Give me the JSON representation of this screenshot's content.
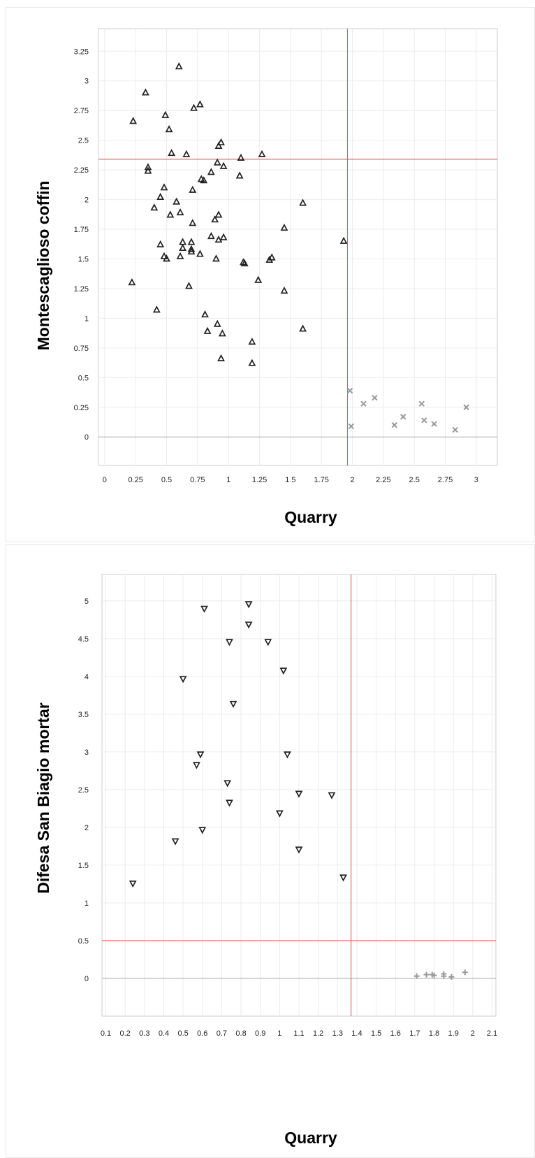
{
  "chart_data": [
    {
      "type": "scatter",
      "xlabel": "Quarry",
      "ylabel": "Montescaglioso coffin",
      "xlim": [
        -0.05,
        3.17
      ],
      "ylim": [
        -0.24,
        3.44
      ],
      "xticks": [
        "0",
        "0.25",
        "0.5",
        "0.75",
        "1",
        "1.25",
        "1.5",
        "1.75",
        "2",
        "2.25",
        "2.5",
        "2.75",
        "3"
      ],
      "yticks": [
        "0",
        "0.25",
        "0.5",
        "0.75",
        "1",
        "1.25",
        "1.5",
        "1.75",
        "2",
        "2.25",
        "2.5",
        "2.75",
        "3",
        "3.25"
      ],
      "grid": true,
      "threshold_x": 1.96,
      "threshold_y": 2.34,
      "threshold_color": "#ee4444",
      "series": [
        {
          "marker": "triangle-up",
          "color": "#222222",
          "points": [
            [
              0.6,
              3.12
            ],
            [
              0.33,
              2.9
            ],
            [
              0.77,
              2.8
            ],
            [
              0.72,
              2.77
            ],
            [
              0.49,
              2.71
            ],
            [
              0.23,
              2.66
            ],
            [
              0.52,
              2.59
            ],
            [
              0.94,
              2.48
            ],
            [
              0.92,
              2.45
            ],
            [
              0.54,
              2.39
            ],
            [
              0.66,
              2.38
            ],
            [
              1.27,
              2.38
            ],
            [
              1.1,
              2.35
            ],
            [
              0.91,
              2.31
            ],
            [
              0.96,
              2.28
            ],
            [
              0.35,
              2.27
            ],
            [
              0.35,
              2.24
            ],
            [
              0.86,
              2.23
            ],
            [
              1.09,
              2.2
            ],
            [
              0.78,
              2.17
            ],
            [
              0.8,
              2.16
            ],
            [
              0.48,
              2.1
            ],
            [
              0.71,
              2.08
            ],
            [
              0.45,
              2.02
            ],
            [
              0.58,
              1.98
            ],
            [
              1.6,
              1.97
            ],
            [
              0.4,
              1.93
            ],
            [
              0.61,
              1.89
            ],
            [
              0.92,
              1.87
            ],
            [
              0.53,
              1.87
            ],
            [
              0.89,
              1.83
            ],
            [
              0.71,
              1.8
            ],
            [
              1.45,
              1.76
            ],
            [
              0.86,
              1.69
            ],
            [
              0.96,
              1.68
            ],
            [
              0.92,
              1.66
            ],
            [
              1.93,
              1.65
            ],
            [
              0.63,
              1.64
            ],
            [
              0.7,
              1.64
            ],
            [
              0.45,
              1.62
            ],
            [
              0.63,
              1.59
            ],
            [
              0.7,
              1.58
            ],
            [
              0.7,
              1.56
            ],
            [
              0.77,
              1.54
            ],
            [
              0.61,
              1.52
            ],
            [
              0.48,
              1.52
            ],
            [
              0.5,
              1.5
            ],
            [
              1.35,
              1.51
            ],
            [
              1.33,
              1.49
            ],
            [
              0.9,
              1.5
            ],
            [
              1.12,
              1.47
            ],
            [
              1.13,
              1.46
            ],
            [
              0.22,
              1.3
            ],
            [
              1.24,
              1.32
            ],
            [
              0.68,
              1.27
            ],
            [
              1.45,
              1.23
            ],
            [
              0.42,
              1.07
            ],
            [
              0.81,
              1.03
            ],
            [
              0.91,
              0.95
            ],
            [
              1.6,
              0.91
            ],
            [
              0.83,
              0.89
            ],
            [
              0.95,
              0.87
            ],
            [
              1.19,
              0.8
            ],
            [
              0.94,
              0.66
            ],
            [
              1.19,
              0.62
            ]
          ]
        },
        {
          "marker": "x",
          "color": "#999999",
          "points": [
            [
              1.98,
              0.39
            ],
            [
              2.18,
              0.33
            ],
            [
              2.09,
              0.28
            ],
            [
              2.56,
              0.28
            ],
            [
              2.92,
              0.25
            ],
            [
              2.41,
              0.17
            ],
            [
              2.58,
              0.14
            ],
            [
              2.66,
              0.11
            ],
            [
              2.34,
              0.1
            ],
            [
              1.99,
              0.09
            ],
            [
              2.83,
              0.06
            ]
          ]
        }
      ]
    },
    {
      "type": "scatter",
      "xlabel": "Quarry",
      "ylabel": "Difesa San Biagio mortar",
      "xlim": [
        0.08,
        2.12
      ],
      "ylim": [
        -0.5,
        5.35
      ],
      "xticks": [
        "0.1",
        "0.2",
        "0.3",
        "0.4",
        "0.5",
        "0.6",
        "0.7",
        "0.8",
        "0.9",
        "1",
        "1.1",
        "1.2",
        "1.3",
        "1.4",
        "1.5",
        "1.6",
        "1.7",
        "1.8",
        "1.9",
        "2",
        "2.1"
      ],
      "yticks": [
        "0",
        "0.5",
        "1",
        "1.5",
        "2",
        "2.5",
        "3",
        "3.5",
        "4",
        "4.5",
        "5"
      ],
      "grid": true,
      "threshold_x": 1.37,
      "threshold_y": 0.5,
      "threshold_color": "#ee4444",
      "series": [
        {
          "marker": "triangle-down",
          "color": "#222222",
          "points": [
            [
              0.84,
              4.96
            ],
            [
              0.61,
              4.9
            ],
            [
              0.84,
              4.69
            ],
            [
              0.74,
              4.46
            ],
            [
              0.94,
              4.46
            ],
            [
              1.02,
              4.08
            ],
            [
              0.5,
              3.97
            ],
            [
              0.76,
              3.64
            ],
            [
              0.59,
              2.97
            ],
            [
              1.04,
              2.97
            ],
            [
              0.57,
              2.83
            ],
            [
              0.73,
              2.59
            ],
            [
              1.1,
              2.45
            ],
            [
              1.27,
              2.43
            ],
            [
              0.74,
              2.33
            ],
            [
              1.0,
              2.19
            ],
            [
              0.6,
              1.97
            ],
            [
              0.46,
              1.82
            ],
            [
              1.1,
              1.71
            ],
            [
              1.33,
              1.34
            ],
            [
              0.24,
              1.26
            ]
          ]
        },
        {
          "marker": "plus",
          "color": "#999999",
          "points": [
            [
              1.71,
              0.03
            ],
            [
              1.76,
              0.05
            ],
            [
              1.79,
              0.05
            ],
            [
              1.8,
              0.04
            ],
            [
              1.85,
              0.06
            ],
            [
              1.85,
              0.03
            ],
            [
              1.89,
              0.02
            ],
            [
              1.96,
              0.08
            ]
          ]
        }
      ]
    }
  ]
}
